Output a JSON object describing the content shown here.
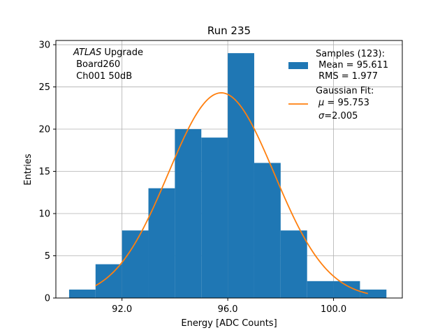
{
  "chart_data": {
    "type": "bar",
    "title": "Run 235",
    "xlabel": "Energy [ADC Counts]",
    "ylabel": "Entries",
    "xlim": [
      89.5,
      102.6
    ],
    "ylim": [
      0,
      30.5
    ],
    "xticks": [
      92.0,
      96.0,
      100.0
    ],
    "xtick_labels": [
      "92.0",
      "96.0",
      "100.0"
    ],
    "yticks": [
      0,
      5,
      10,
      15,
      20,
      25,
      30
    ],
    "ytick_labels": [
      "0",
      "5",
      "10",
      "15",
      "20",
      "25",
      "30"
    ],
    "grid": true,
    "bin_edges": [
      90.0,
      91.0,
      92.0,
      93.0,
      94.0,
      95.0,
      96.0,
      97.0,
      98.0,
      99.0,
      100.0,
      101.0,
      102.0
    ],
    "counts": [
      1,
      4,
      8,
      13,
      20,
      19,
      29,
      16,
      8,
      2,
      2,
      1
    ],
    "bar_color": "#1f77b4",
    "fit": {
      "mu": 95.753,
      "sigma": 2.005,
      "amplitude": 24.3,
      "x_range": [
        91.0,
        101.3
      ],
      "color": "#ff7f0e"
    },
    "annotation": {
      "line1_italic": "ATLAS",
      "line1_rest": " Upgrade",
      "line2": " Board260",
      "line3": " Ch001 50dB"
    },
    "legend": {
      "position": "top-right",
      "samples_line1": "Samples (123):",
      "samples_line2": " Mean = 95.611",
      "samples_line3": " RMS = 1.977",
      "fit_line1": "Gaussian Fit:",
      "fit_mu_symbol": "μ",
      "fit_mu_rest": " = 95.753",
      "fit_sigma_symbol": "σ",
      "fit_sigma_rest": "=2.005"
    }
  }
}
